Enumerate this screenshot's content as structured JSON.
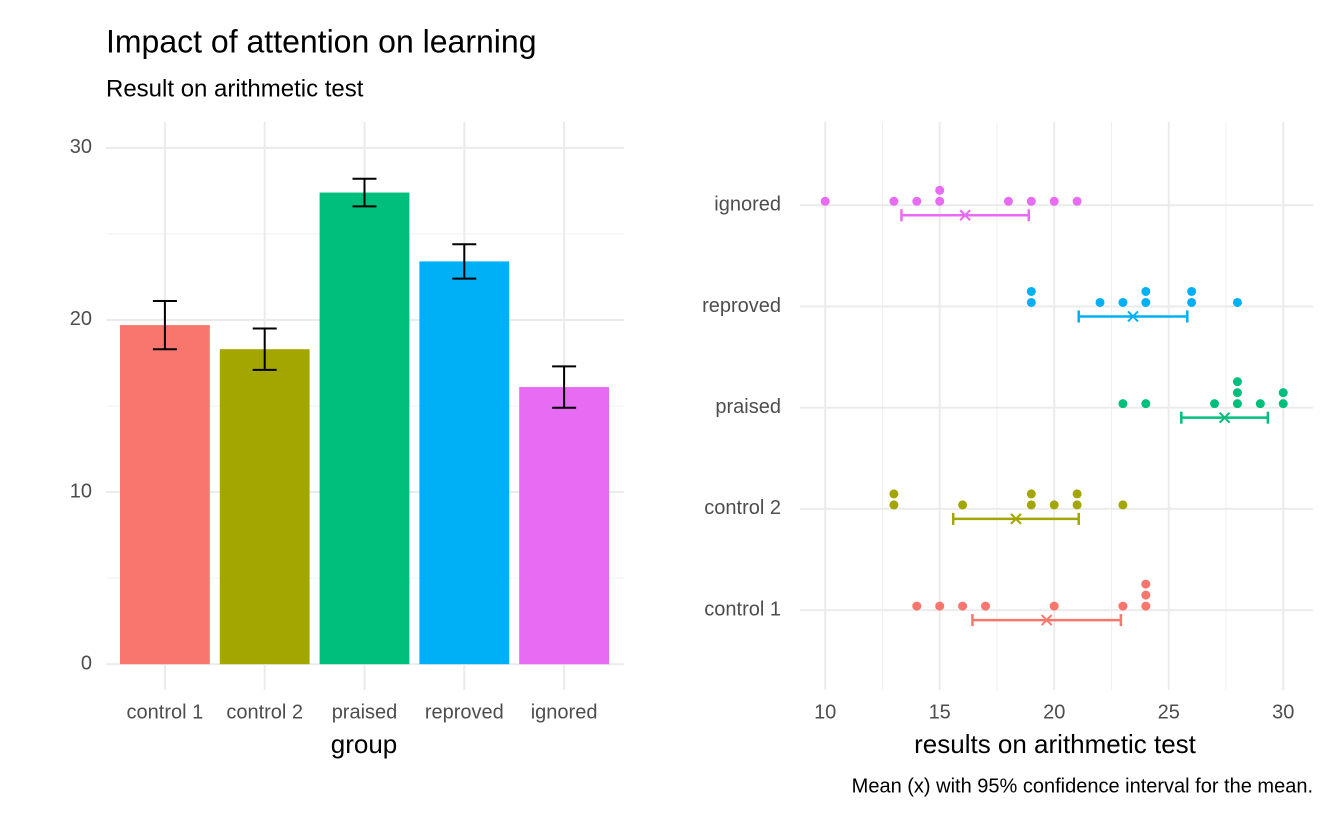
{
  "chart_data": [
    {
      "type": "bar",
      "title": "Impact of attention on learning",
      "subtitle": "Result on arithmetic test",
      "x_label": "group",
      "categories": [
        "control 1",
        "control 2",
        "praised",
        "reproved",
        "ignored"
      ],
      "values": [
        19.7,
        18.3,
        27.4,
        23.4,
        16.1
      ],
      "errors": [
        1.4,
        1.2,
        0.8,
        1.0,
        1.2
      ],
      "colors": [
        "#F8766D",
        "#A3A500",
        "#00BF7D",
        "#00B0F6",
        "#E76BF3"
      ],
      "ylim": [
        -1.5,
        31.5
      ],
      "yticks": [
        0,
        10,
        20,
        30
      ],
      "y_minor_ticks": [
        5,
        15,
        25
      ],
      "grid": true
    },
    {
      "type": "dot",
      "x_label": "results on arithmetic test",
      "caption": "Mean (x) with 95% confidence interval for the mean.",
      "series": [
        {
          "name": "control 1",
          "color": "#F8766D",
          "values": [
            14,
            15,
            16,
            17,
            20,
            23,
            24,
            24,
            24
          ],
          "mean": 19.67,
          "error": 3.24
        },
        {
          "name": "control 2",
          "color": "#A3A500",
          "values": [
            13,
            13,
            16,
            19,
            19,
            20,
            21,
            21,
            23
          ],
          "mean": 18.33,
          "error": 2.74
        },
        {
          "name": "praised",
          "color": "#00BF7D",
          "values": [
            23,
            24,
            27,
            28,
            28,
            28,
            29,
            30,
            30
          ],
          "mean": 27.44,
          "error": 1.89
        },
        {
          "name": "reproved",
          "color": "#00B0F6",
          "values": [
            19,
            19,
            22,
            23,
            24,
            24,
            26,
            26,
            28
          ],
          "mean": 23.44,
          "error": 2.37
        },
        {
          "name": "ignored",
          "color": "#E76BF3",
          "values": [
            10,
            13,
            14,
            15,
            15,
            18,
            19,
            20,
            21
          ],
          "mean": 16.11,
          "error": 2.78
        }
      ],
      "xlim": [
        8.9,
        31.3
      ],
      "xticks": [
        10,
        15,
        20,
        25,
        30
      ],
      "x_minor_ticks": [
        12.5,
        17.5,
        22.5,
        27.5
      ],
      "grid": true
    }
  ]
}
